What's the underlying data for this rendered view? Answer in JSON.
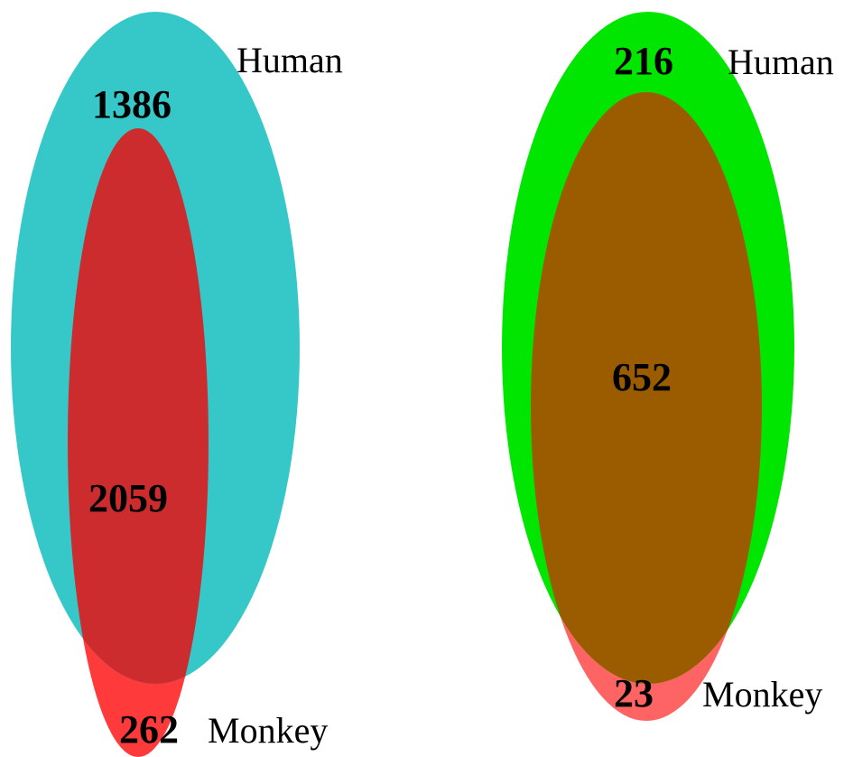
{
  "diagrams": [
    {
      "human_label": "Human",
      "monkey_label": "Monkey",
      "human_only": "1386",
      "overlap": "2059",
      "monkey_only": "262",
      "colors": {
        "human": "#36c8c8",
        "monkey": "#ff3a3a",
        "overlap": "#cc2c2e"
      }
    },
    {
      "human_label": "Human",
      "monkey_label": "Monkey",
      "human_only": "216",
      "overlap": "652",
      "monkey_only": "23",
      "colors": {
        "human": "#00e600",
        "monkey": "#ff6464",
        "overlap": "#9b5c00"
      }
    }
  ]
}
